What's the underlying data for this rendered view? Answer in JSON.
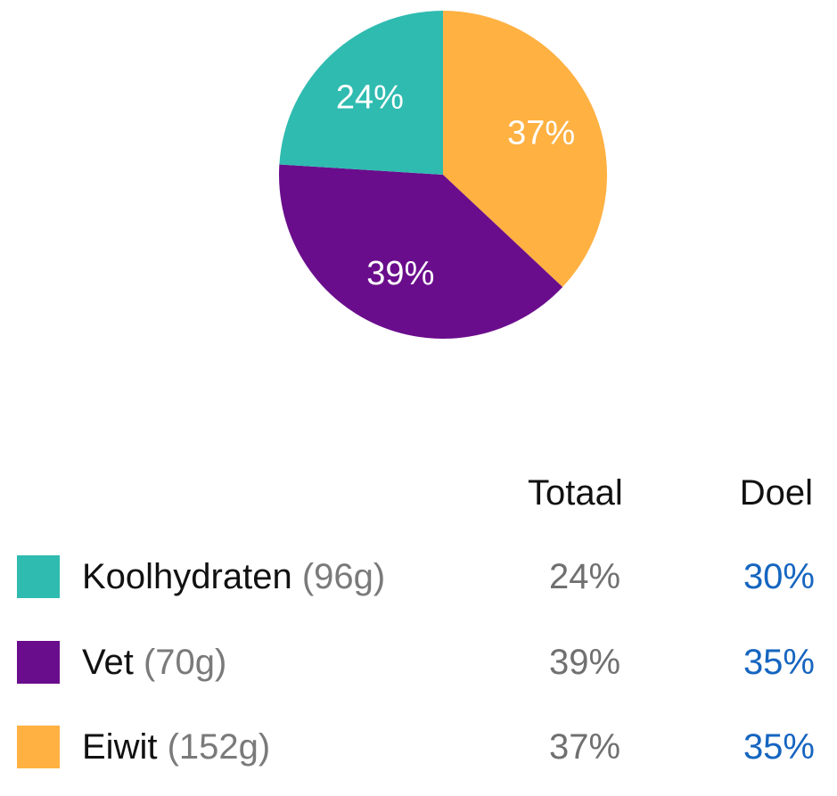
{
  "colors": {
    "koolhydraten": "#2fbbb0",
    "vet": "#6a0d8c",
    "eiwit": "#ffb142",
    "doel": "#1565c0"
  },
  "chart_data": {
    "type": "pie",
    "slices": [
      {
        "name": "Eiwit",
        "value": 37,
        "label": "37%",
        "color": "#ffb142"
      },
      {
        "name": "Vet",
        "value": 39,
        "label": "39%",
        "color": "#6a0d8c"
      },
      {
        "name": "Koolhydraten",
        "value": 24,
        "label": "24%",
        "color": "#2fbbb0"
      }
    ],
    "start_angle": "top",
    "direction": "clockwise"
  },
  "table": {
    "headers": {
      "totaal": "Totaal",
      "doel": "Doel"
    },
    "rows": [
      {
        "name": "Koolhydraten",
        "grams": "(96g)",
        "totaal": "24%",
        "doel": "30%",
        "color": "#2fbbb0"
      },
      {
        "name": "Vet",
        "grams": "(70g)",
        "totaal": "39%",
        "doel": "35%",
        "color": "#6a0d8c"
      },
      {
        "name": "Eiwit",
        "grams": "(152g)",
        "totaal": "37%",
        "doel": "35%",
        "color": "#ffb142"
      }
    ]
  }
}
